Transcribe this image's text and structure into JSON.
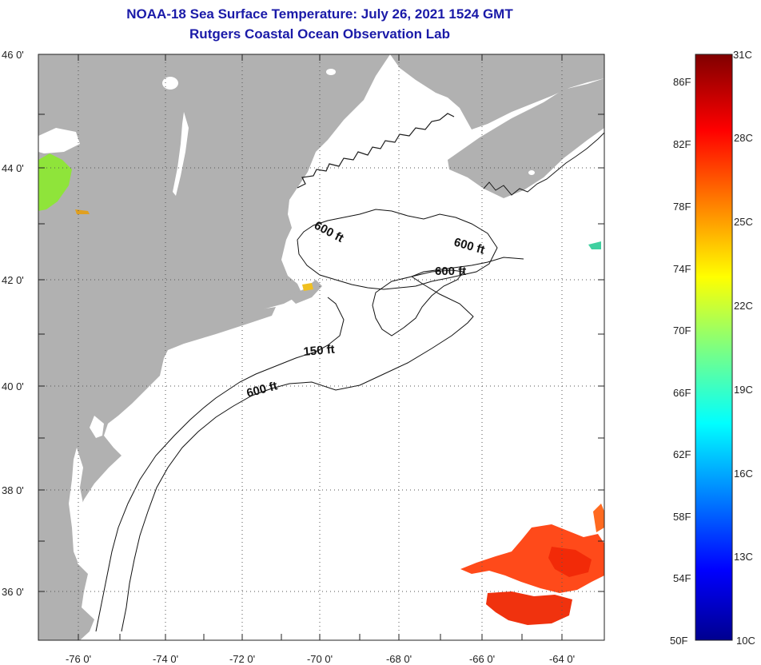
{
  "title": {
    "line1": "NOAA-18 Sea Surface Temperature:  July 26, 2021 1524 GMT",
    "line2": "Rutgers Coastal Ocean Observation Lab"
  },
  "map": {
    "lat_labels": [
      "46 0'",
      "44 0'",
      "42 0'",
      "40 0'",
      "38 0'",
      "36 0'"
    ],
    "lon_labels": [
      "-76 0'",
      "-74 0'",
      "-72 0'",
      "-70 0'",
      "-68 0'",
      "-66 0'",
      "-64 0'"
    ],
    "depth_labels": {
      "a": "600 ft",
      "b": "600 ft",
      "c": "600 ft",
      "d": "150 ft",
      "e": "600 ft"
    },
    "colors": {
      "land": "#b1b1b1",
      "ocean": "#ffffff",
      "warm_sst": "#ff3a12",
      "warmer_sst": "#ff2200"
    }
  },
  "colorbar": {
    "celsius": [
      "31C",
      "28C",
      "25C",
      "22C",
      "19C",
      "16C",
      "13C",
      "10C"
    ],
    "fahrenheit": [
      "86F",
      "82F",
      "78F",
      "74F",
      "70F",
      "66F",
      "62F",
      "58F",
      "54F",
      "50F"
    ]
  }
}
